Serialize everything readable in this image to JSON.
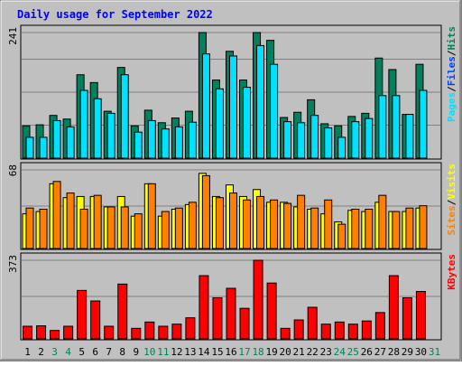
{
  "title": "Daily usage for September 2022",
  "colors": {
    "background": "#c0c0c0",
    "plot": "#c0c0c0",
    "grid": "#808080",
    "title": "#0000ff",
    "hits": "#00805c",
    "files": "#0040ff",
    "pages": "#00e0ff",
    "visits": "#ffff00",
    "sites": "#ff8000",
    "kbytes": "#ff0000",
    "weekend_label": "#00805c",
    "weekday_label": "#000000"
  },
  "chart_data": [
    {
      "type": "bar",
      "name": "hits-files-pages",
      "categories": [
        "1",
        "2",
        "3",
        "4",
        "5",
        "6",
        "7",
        "8",
        "9",
        "10",
        "11",
        "12",
        "13",
        "14",
        "15",
        "16",
        "17",
        "18",
        "19",
        "20",
        "21",
        "22",
        "23",
        "24",
        "25",
        "26",
        "27",
        "28",
        "29",
        "30",
        "31"
      ],
      "ymax_label": "241",
      "ymax": 241,
      "ylabel": [
        "Pages",
        "Files",
        "Hits"
      ],
      "series": [
        {
          "name": "Hits",
          "color": "#00805c",
          "values": [
            62,
            64,
            82,
            75,
            160,
            145,
            90,
            174,
            62,
            92,
            68,
            77,
            90,
            241,
            150,
            205,
            150,
            241,
            226,
            78,
            88,
            112,
            66,
            62,
            80,
            86,
            192,
            170,
            84,
            180,
            0
          ]
        },
        {
          "name": "Pages",
          "color": "#00e0ff",
          "values": [
            40,
            40,
            72,
            60,
            130,
            114,
            86,
            160,
            50,
            72,
            56,
            60,
            69,
            200,
            133,
            196,
            136,
            216,
            180,
            70,
            68,
            82,
            58,
            40,
            70,
            76,
            120,
            120,
            84,
            130,
            0
          ]
        }
      ]
    },
    {
      "type": "bar",
      "name": "visits-sites",
      "ymax_label": "68",
      "ymax": 68,
      "ylabel": [
        "Sites",
        "Visits"
      ],
      "series": [
        {
          "name": "Visits",
          "color": "#ffff00",
          "values": [
            30,
            32,
            56,
            44,
            45,
            45,
            36,
            45,
            28,
            56,
            28,
            34,
            38,
            65,
            45,
            55,
            45,
            51,
            40,
            40,
            36,
            34,
            30,
            23,
            33,
            32,
            40,
            32,
            32,
            35,
            0
          ]
        },
        {
          "name": "Sites",
          "color": "#ff8000",
          "values": [
            35,
            34,
            58,
            48,
            34,
            46,
            36,
            36,
            30,
            56,
            32,
            35,
            40,
            63,
            44,
            48,
            42,
            45,
            42,
            39,
            46,
            35,
            42,
            21,
            34,
            34,
            46,
            32,
            35,
            37,
            0
          ]
        }
      ]
    },
    {
      "type": "bar",
      "name": "kbytes",
      "ymax_label": "373",
      "ymax": 373,
      "ylabel": [
        "KBytes"
      ],
      "series": [
        {
          "name": "KBytes",
          "color": "#ff0000",
          "values": [
            60,
            62,
            40,
            60,
            230,
            180,
            60,
            260,
            50,
            80,
            60,
            70,
            100,
            300,
            195,
            240,
            145,
            373,
            265,
            50,
            90,
            150,
            70,
            80,
            70,
            85,
            125,
            300,
            195,
            225,
            0
          ]
        }
      ]
    }
  ]
}
